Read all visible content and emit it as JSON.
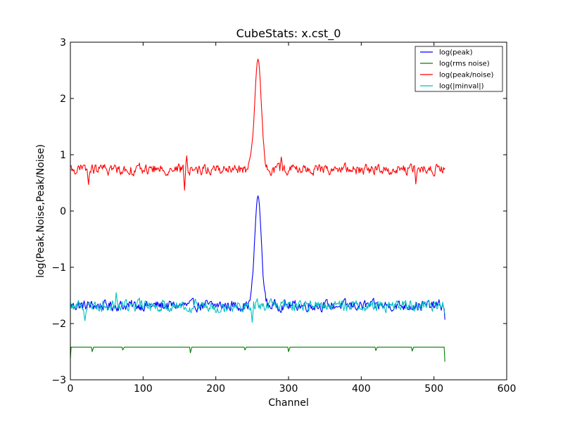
{
  "chart_data": {
    "type": "line",
    "title": "CubeStats: x.cst_0",
    "xlabel": "Channel",
    "ylabel": "log(Peak,Noise,Peak/Noise)",
    "xlim": [
      0,
      600
    ],
    "ylim": [
      -3,
      3
    ],
    "xticks": [
      "0",
      "100",
      "200",
      "300",
      "400",
      "500",
      "600"
    ],
    "yticks": [
      "3",
      "2",
      "1",
      "0",
      "−1",
      "−2",
      "−3"
    ],
    "grid": false,
    "legend_position": "top-right",
    "n_channels": 516,
    "series": [
      {
        "name": "log(peak)",
        "color": "#0000ff",
        "profile": "noise",
        "baseline": -1.68,
        "noise_amplitude": 0.09,
        "peak_center": 258,
        "peak_height": 0.27,
        "peak_width": 4.5,
        "last_value": -1.93
      },
      {
        "name": "log(rms noise)",
        "color": "#008000",
        "profile": "flat",
        "baseline": -2.42,
        "first_value": -2.62,
        "last_value": -2.68,
        "dips": [
          {
            "x": 30,
            "y": -2.5
          },
          {
            "x": 72,
            "y": -2.47
          },
          {
            "x": 165,
            "y": -2.52
          },
          {
            "x": 240,
            "y": -2.47
          },
          {
            "x": 300,
            "y": -2.5
          },
          {
            "x": 420,
            "y": -2.48
          },
          {
            "x": 470,
            "y": -2.49
          }
        ]
      },
      {
        "name": "log(peak/noise)",
        "color": "#ff0000",
        "profile": "noise",
        "baseline": 0.74,
        "noise_amplitude": 0.09,
        "peak_center": 258,
        "peak_height": 2.7,
        "peak_width": 4.5,
        "features": [
          {
            "x": 25,
            "y": 0.47
          },
          {
            "x": 157,
            "y": 0.37
          },
          {
            "x": 160,
            "y": 0.98
          },
          {
            "x": 290,
            "y": 0.96
          },
          {
            "x": 475,
            "y": 0.48
          }
        ],
        "last_value": 0.76
      },
      {
        "name": "log(|minval|)",
        "color": "#00bfbf",
        "profile": "noise",
        "baseline": -1.68,
        "noise_amplitude": 0.1,
        "features": [
          {
            "x": 63,
            "y": -1.45
          },
          {
            "x": 20,
            "y": -1.95
          },
          {
            "x": 250,
            "y": -1.98
          }
        ],
        "last_value": -1.83
      }
    ]
  }
}
